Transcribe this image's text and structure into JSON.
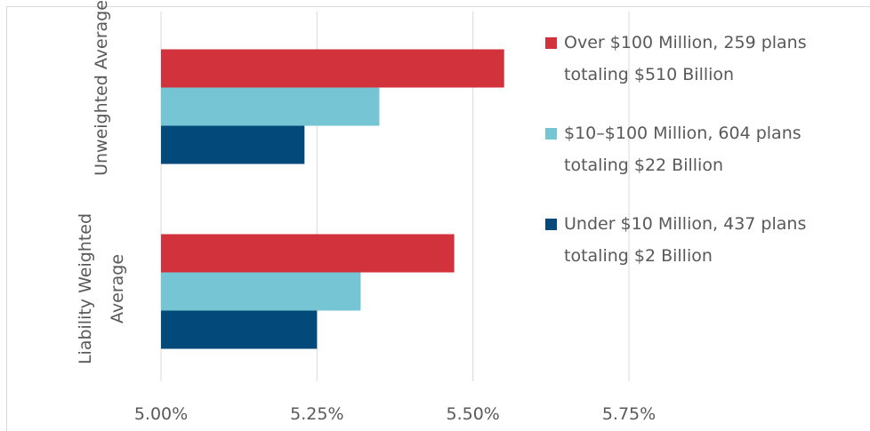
{
  "chart_data": {
    "type": "hbar",
    "categories": [
      "Unweighted Average",
      "Liability Weighted Average"
    ],
    "series": [
      {
        "name": "Over $100 Million, 259 plans totaling $510 Billion",
        "color": "#d2323b",
        "values": [
          5.55,
          5.47
        ]
      },
      {
        "name": "$10–$100 Million, 604 plans totaling $22 Billion",
        "color": "#76c5d5",
        "values": [
          5.35,
          5.32
        ]
      },
      {
        "name": "Under $10 Million, 437 plans totaling $2 Billion",
        "color": "#03497a",
        "values": [
          5.23,
          5.25
        ]
      }
    ],
    "xlim": [
      5,
      5.75
    ],
    "xticks": [
      {
        "value": 5,
        "label": "5.00%"
      },
      {
        "value": 5.25,
        "label": "5.25%"
      },
      {
        "value": 5.5,
        "label": "5.50%"
      },
      {
        "value": 5.75,
        "label": "5.75%"
      }
    ],
    "grid": true,
    "legend": "right"
  }
}
